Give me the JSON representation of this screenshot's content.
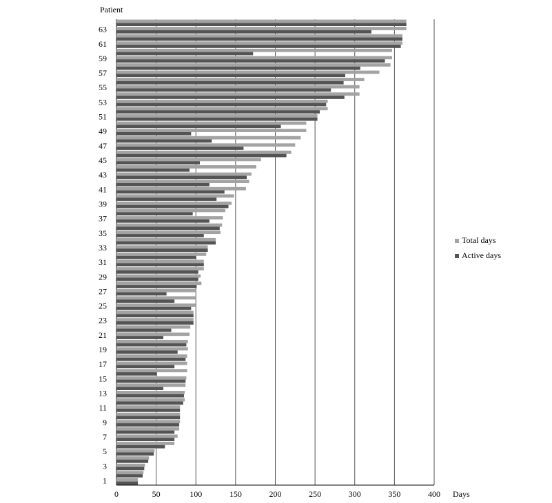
{
  "chart_data": {
    "type": "bar",
    "orientation": "horizontal",
    "x_label": "Days",
    "y_label": "Patient",
    "categories": [
      "1",
      null,
      "3",
      null,
      "5",
      null,
      "7",
      null,
      "9",
      null,
      "11",
      null,
      "13",
      null,
      "15",
      null,
      "17",
      null,
      "19",
      null,
      "21",
      null,
      "23",
      null,
      "25",
      null,
      "27",
      null,
      "29",
      null,
      "31",
      null,
      "33",
      null,
      "35",
      null,
      "37",
      null,
      "39",
      null,
      "41",
      null,
      "43",
      null,
      "45",
      null,
      "47",
      null,
      "49",
      null,
      "51",
      null,
      "53",
      null,
      "55",
      null,
      "57",
      null,
      "59",
      null,
      "61",
      null,
      "63",
      null
    ],
    "series": [
      {
        "name": "Total days",
        "color": "#a3a3a3",
        "values": [
          27,
          34,
          36,
          41,
          48,
          73,
          77,
          79,
          80,
          80,
          80,
          86,
          86,
          87,
          88,
          89,
          89,
          89,
          90,
          90,
          92,
          93,
          97,
          97,
          100,
          100,
          100,
          107,
          106,
          110,
          110,
          113,
          115,
          125,
          131,
          133,
          134,
          137,
          145,
          148,
          163,
          167,
          170,
          176,
          182,
          220,
          225,
          232,
          239,
          239,
          253,
          266,
          266,
          306,
          306,
          312,
          331,
          345,
          347,
          347,
          360,
          360,
          365,
          365
        ]
      },
      {
        "name": "Active days",
        "color": "#545454",
        "values": [
          27,
          33,
          35,
          40,
          47,
          61,
          73,
          73,
          79,
          80,
          80,
          84,
          85,
          59,
          87,
          51,
          73,
          87,
          77,
          88,
          59,
          69,
          97,
          97,
          94,
          73,
          63,
          101,
          103,
          103,
          110,
          100,
          115,
          125,
          110,
          130,
          117,
          96,
          141,
          126,
          136,
          117,
          164,
          92,
          105,
          214,
          160,
          120,
          94,
          207,
          253,
          256,
          264,
          287,
          270,
          286,
          288,
          307,
          338,
          172,
          358,
          360,
          321,
          365
        ]
      }
    ],
    "xlim": [
      0,
      400
    ],
    "xticks": [
      0,
      50,
      100,
      150,
      200,
      250,
      300,
      350,
      400
    ],
    "grid": true,
    "legend": "right"
  }
}
